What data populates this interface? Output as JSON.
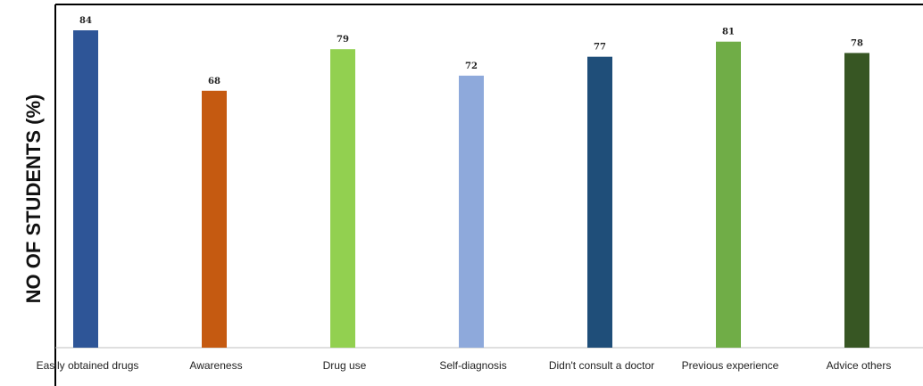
{
  "chart_data": {
    "type": "bar",
    "title": "",
    "xlabel": "",
    "ylabel": "NO OF STUDENTS (%)",
    "categories": [
      "Easily obtained drugs",
      "Awareness",
      "Drug use",
      "Self-diagnosis",
      "Didn't consult a doctor",
      "Previous experience",
      "Advice others"
    ],
    "values": [
      84,
      68,
      79,
      72,
      77,
      81,
      78
    ],
    "colors": [
      "#2E5597",
      "#C55A11",
      "#92D050",
      "#8EA9DB",
      "#1F4E79",
      "#70AD47",
      "#375623"
    ],
    "ylim": [
      0,
      84
    ],
    "grid": false,
    "legend": "none"
  }
}
